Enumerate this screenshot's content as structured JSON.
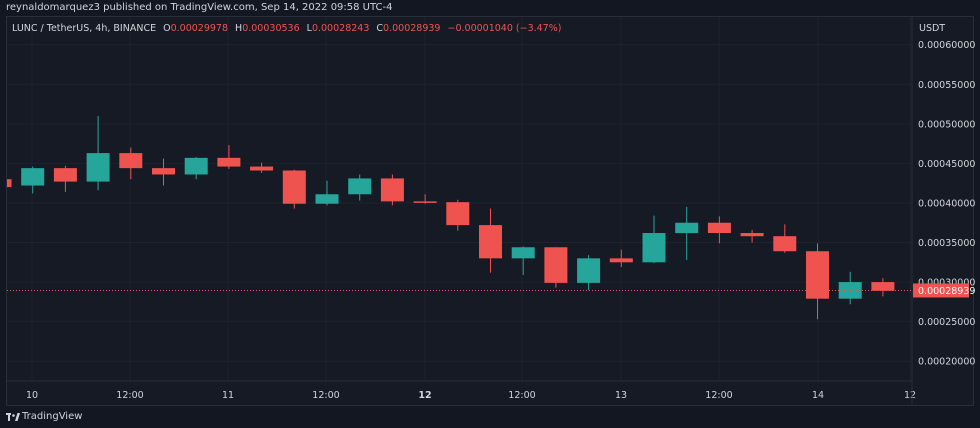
{
  "header": {
    "published_text": "reynaldomarquez3 published on TradingView.com, Sep 14, 2022 09:58 UTC-4"
  },
  "legend": {
    "symbol": "LUNC / TetherUS, 4h, BINANCE",
    "o_label": "O",
    "o_value": "0.00029978",
    "h_label": "H",
    "h_value": "0.00030536",
    "l_label": "L",
    "l_value": "0.00028243",
    "c_label": "C",
    "c_value": "0.00028939",
    "change": "−0.00001040 (−3.47%)"
  },
  "price_axis": {
    "unit": "USDT",
    "current_price_label": "0.00028939"
  },
  "footer": {
    "brand": "TradingView",
    "logo_icon": "tradingview-logo-icon"
  },
  "colors": {
    "up": "#26a69a",
    "down": "#ef5350",
    "background": "#131722",
    "grid": "#1e222d",
    "text": "#d1d4dc"
  },
  "chart_data": {
    "type": "candlestick",
    "title": "LUNC / TetherUS, 4h, BINANCE",
    "ylim": [
      0.000175,
      0.000635
    ],
    "y_ticks": [
      "0.00020000",
      "0.00025000",
      "0.00030000",
      "0.00035000",
      "0.00040000",
      "0.00045000",
      "0.00050000",
      "0.00055000",
      "0.00060000"
    ],
    "y_tick_values": [
      0.0002,
      0.00025,
      0.0003,
      0.00035,
      0.0004,
      0.00045,
      0.0005,
      0.00055,
      0.0006
    ],
    "x_ticks": [
      "10",
      "12:00",
      "11",
      "12:00",
      "12",
      "12:00",
      "13",
      "12:00",
      "14",
      "12"
    ],
    "x_tick_bold": [
      false,
      false,
      false,
      false,
      true,
      false,
      false,
      false,
      false,
      false
    ],
    "grid": true,
    "current_price": 0.00028939,
    "candles": [
      {
        "o": 0.00043,
        "h": 0.000438,
        "l": 0.000415,
        "c": 0.00042
      },
      {
        "o": 0.000422,
        "h": 0.000446,
        "l": 0.000412,
        "c": 0.000444
      },
      {
        "o": 0.000444,
        "h": 0.000447,
        "l": 0.000414,
        "c": 0.000427
      },
      {
        "o": 0.000427,
        "h": 0.00051,
        "l": 0.000416,
        "c": 0.000463
      },
      {
        "o": 0.000463,
        "h": 0.00047,
        "l": 0.00043,
        "c": 0.000444
      },
      {
        "o": 0.000444,
        "h": 0.000456,
        "l": 0.000422,
        "c": 0.000436
      },
      {
        "o": 0.000436,
        "h": 0.000458,
        "l": 0.00043,
        "c": 0.000457
      },
      {
        "o": 0.000457,
        "h": 0.000473,
        "l": 0.000443,
        "c": 0.000446
      },
      {
        "o": 0.000446,
        "h": 0.000451,
        "l": 0.000438,
        "c": 0.000441
      },
      {
        "o": 0.000441,
        "h": 0.000442,
        "l": 0.000393,
        "c": 0.000399
      },
      {
        "o": 0.000399,
        "h": 0.000428,
        "l": 0.000397,
        "c": 0.000411
      },
      {
        "o": 0.000411,
        "h": 0.000436,
        "l": 0.000403,
        "c": 0.000431
      },
      {
        "o": 0.000431,
        "h": 0.000436,
        "l": 0.000397,
        "c": 0.000402
      },
      {
        "o": 0.000402,
        "h": 0.000411,
        "l": 0.000399,
        "c": 0.000401
      },
      {
        "o": 0.000401,
        "h": 0.000404,
        "l": 0.000365,
        "c": 0.000372
      },
      {
        "o": 0.000372,
        "h": 0.000393,
        "l": 0.000312,
        "c": 0.00033
      },
      {
        "o": 0.00033,
        "h": 0.000345,
        "l": 0.000309,
        "c": 0.000344
      },
      {
        "o": 0.000344,
        "h": 0.000344,
        "l": 0.000293,
        "c": 0.000299
      },
      {
        "o": 0.000299,
        "h": 0.000334,
        "l": 0.00029,
        "c": 0.00033
      },
      {
        "o": 0.00033,
        "h": 0.000341,
        "l": 0.000319,
        "c": 0.000325
      },
      {
        "o": 0.000325,
        "h": 0.000384,
        "l": 0.000324,
        "c": 0.000362
      },
      {
        "o": 0.000362,
        "h": 0.000395,
        "l": 0.000328,
        "c": 0.000375
      },
      {
        "o": 0.000375,
        "h": 0.000383,
        "l": 0.000349,
        "c": 0.000362
      },
      {
        "o": 0.000362,
        "h": 0.000366,
        "l": 0.00035,
        "c": 0.000358
      },
      {
        "o": 0.000358,
        "h": 0.000373,
        "l": 0.000337,
        "c": 0.000339
      },
      {
        "o": 0.000339,
        "h": 0.000349,
        "l": 0.000253,
        "c": 0.000279
      },
      {
        "o": 0.000279,
        "h": 0.000313,
        "l": 0.000272,
        "c": 0.0003
      },
      {
        "o": 0.0003,
        "h": 0.000305,
        "l": 0.000282,
        "c": 0.000289
      }
    ]
  }
}
